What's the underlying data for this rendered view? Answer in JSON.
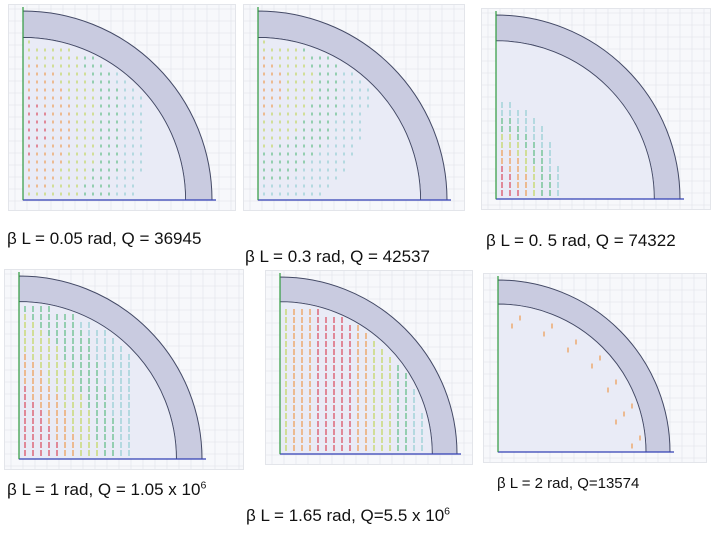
{
  "panels": [
    {
      "caption": "β L = 0.05 rad, Q = 36945",
      "mode": "spread",
      "ring_color": "#c9cbe0"
    },
    {
      "caption": "β L = 0.3 rad, Q = 42537",
      "mode": "spread-top",
      "ring_color": "#c9cbe0"
    },
    {
      "caption": "β L = 0. 5 rad, Q = 74322",
      "mode": "bottom-left",
      "ring_color": "#c9cbe0"
    },
    {
      "caption_prefix": "β L = 1 rad, Q = 1.05 x 10",
      "caption_exp": "6",
      "mode": "left-columns",
      "ring_color": "#c9cbe0"
    },
    {
      "caption_prefix": "β L = 1.65 rad, Q=5.5 x 10",
      "caption_exp": "6",
      "mode": "columns",
      "ring_color": "#c9cbe0"
    },
    {
      "caption": "β L = 2 rad, Q=13574",
      "mode": "wall",
      "ring_color": "#c9cbe0"
    }
  ],
  "colors": {
    "hot": "#d8263a",
    "warm": "#f08a2c",
    "mid": "#b9d23a",
    "cool": "#3fb26a",
    "faint": "#7fc7c9",
    "edge": "#444a66",
    "axis_blue": "#3340b5",
    "axis_green": "#2e9a3e",
    "grid": "#dfe2ea"
  }
}
